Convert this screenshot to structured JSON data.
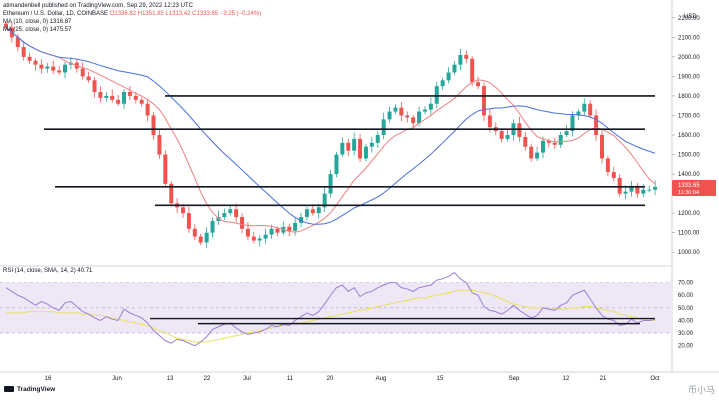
{
  "header": {
    "publisher": "atimandenbell published on TradingView.com, Sep 29, 2022 12:23 UTC",
    "symbol_line": "Ethereum / U.S. Dollar, 1D, COINBASE",
    "ohlc": "O1336.82  H1351.85  L1313.42  C1333.65  −3.25 (−0.24%)",
    "ma1": "MA (10, close, 0)  1316.87",
    "ma2": "MA (25, close, 0)  1475.57"
  },
  "price_badge": {
    "price": "1333.65",
    "countdown": "11:36:04"
  },
  "logo_text": "TradingView",
  "watermark": "币小马",
  "colors": {
    "up": "#26a69a",
    "down": "#ef5350",
    "ma10": "#f08080",
    "ma25": "#4a6fdc",
    "rsi": "#9c7fd4",
    "rsi_ma": "#e8e35a",
    "band": "#ede7f6"
  },
  "chart_data": [
    {
      "type": "candlestick",
      "symbol": "Ethereum / U.S. Dollar",
      "interval": "1D",
      "exchange": "COINBASE",
      "ylim": [
        950,
        2250
      ],
      "y_ticks": [
        1000,
        1100,
        1200,
        1300,
        1400,
        1500,
        1600,
        1700,
        1800,
        1900,
        2000,
        2100,
        2200
      ],
      "y_tick_labels": [
        "1000.00",
        "1100.00",
        "1200.00",
        "1300.00",
        "1400.00",
        "1500.00",
        "1600.00",
        "1700.00",
        "1800.00",
        "1900.00",
        "2000.00",
        "2100.00",
        "2200.00"
      ],
      "y_unit": "USD",
      "x_tick_labels": [
        "16",
        "Jun",
        "13",
        "22",
        "Jul",
        "11",
        "20",
        "Aug",
        "15",
        "Sep",
        "12",
        "21",
        "Oct"
      ],
      "closes": [
        2150,
        2100,
        2050,
        2000,
        1980,
        1960,
        1940,
        1950,
        1930,
        1920,
        1960,
        1970,
        1940,
        1900,
        1880,
        1820,
        1790,
        1800,
        1780,
        1760,
        1820,
        1800,
        1780,
        1760,
        1700,
        1600,
        1500,
        1350,
        1250,
        1230,
        1200,
        1120,
        1080,
        1050,
        1100,
        1160,
        1180,
        1200,
        1220,
        1180,
        1120,
        1080,
        1060,
        1070,
        1090,
        1120,
        1100,
        1130,
        1110,
        1150,
        1180,
        1220,
        1200,
        1230,
        1300,
        1400,
        1500,
        1560,
        1520,
        1580,
        1480,
        1540,
        1560,
        1600,
        1680,
        1720,
        1740,
        1700,
        1690,
        1660,
        1720,
        1730,
        1760,
        1850,
        1880,
        1920,
        1960,
        2010,
        1990,
        1870,
        1850,
        1700,
        1640,
        1620,
        1580,
        1600,
        1660,
        1590,
        1540,
        1480,
        1510,
        1570,
        1560,
        1550,
        1600,
        1620,
        1700,
        1720,
        1760,
        1700,
        1600,
        1480,
        1410,
        1380,
        1300,
        1310,
        1340,
        1300,
        1320,
        1320,
        1334
      ],
      "ma10_last": 1316.87,
      "ma25_last": 1475.57,
      "last_close": 1333.65,
      "horizontal_lines": [
        1800,
        1630,
        1335,
        1240
      ]
    },
    {
      "type": "line",
      "name": "RSI",
      "label": "RSI (14, close, SMA, 14, 2)  40.71",
      "ylim": [
        15,
        80
      ],
      "y_ticks": [
        20,
        30,
        40,
        50,
        60,
        70
      ],
      "y_tick_labels": [
        "20.00",
        "30.00",
        "40.00",
        "50.00",
        "60.00",
        "70.00"
      ],
      "band": [
        30,
        70
      ],
      "midline": 50,
      "rsi": [
        66,
        63,
        60,
        58,
        55,
        52,
        55,
        53,
        50,
        48,
        54,
        55,
        51,
        47,
        45,
        42,
        40,
        43,
        41,
        40,
        49,
        46,
        44,
        42,
        38,
        32,
        28,
        24,
        22,
        25,
        24,
        22,
        20,
        23,
        27,
        33,
        35,
        37,
        38,
        34,
        31,
        29,
        30,
        31,
        33,
        36,
        35,
        37,
        36,
        40,
        43,
        46,
        44,
        47,
        53,
        60,
        66,
        68,
        63,
        66,
        59,
        62,
        63,
        66,
        68,
        70,
        70,
        66,
        65,
        63,
        66,
        67,
        68,
        72,
        73,
        75,
        78,
        73,
        70,
        62,
        60,
        51,
        48,
        47,
        45,
        48,
        52,
        48,
        45,
        42,
        44,
        50,
        49,
        48,
        52,
        54,
        60,
        62,
        64,
        57,
        50,
        44,
        41,
        40,
        36,
        37,
        41,
        38,
        40,
        40,
        40.71
      ],
      "rsi_ma": [
        46,
        46,
        46,
        46,
        47,
        47,
        47,
        47,
        47,
        46,
        46,
        46,
        46,
        45,
        45,
        44,
        44,
        43,
        42,
        41,
        40,
        39,
        38,
        37,
        36,
        34,
        32,
        30,
        28,
        26,
        25,
        24,
        23,
        23,
        23,
        24,
        25,
        26,
        27,
        28,
        29,
        30,
        31,
        32,
        33,
        34,
        35,
        36,
        37,
        38,
        38,
        39,
        40,
        41,
        42,
        43,
        44,
        45,
        46,
        47,
        48,
        49,
        50,
        51,
        52,
        53,
        54,
        55,
        56,
        57,
        58,
        58,
        59,
        60,
        61,
        62,
        63,
        64,
        64,
        64,
        63,
        62,
        61,
        59,
        57,
        55,
        53,
        52,
        51,
        50,
        50,
        50,
        49,
        49,
        49,
        49,
        50,
        50,
        51,
        51,
        50,
        49,
        48,
        47,
        45,
        44,
        43,
        42,
        41,
        40,
        40
      ],
      "horizontal_lines": [
        41.5,
        37.5
      ]
    }
  ]
}
